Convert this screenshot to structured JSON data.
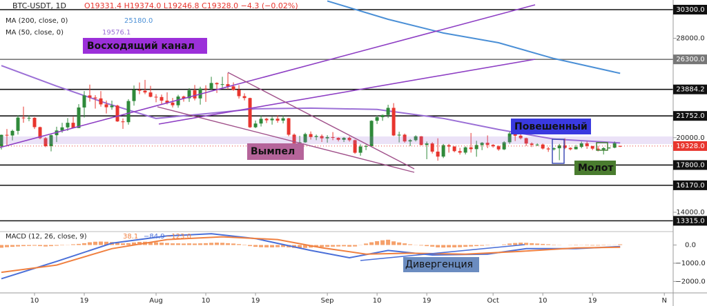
{
  "chart_data": [
    {
      "type": "candlestick",
      "title": "BTC-USDT, 1D",
      "header": "O19331.4 H19374.0 L19246.8 C19328.0 −4.3 (−0.02%)",
      "up_color": "#2f8a3a",
      "down_color": "#e8352e",
      "xlim": [
        -0.25,
        121.6
      ],
      "xticks": [
        {
          "value": 6,
          "label": "10"
        },
        {
          "value": 15,
          "label": "19"
        },
        {
          "value": 28,
          "label": "Aug"
        },
        {
          "value": 37,
          "label": "10"
        },
        {
          "value": 46,
          "label": "19"
        },
        {
          "value": 59,
          "label": "Sep"
        },
        {
          "value": 68,
          "label": "10"
        },
        {
          "value": 77,
          "label": "19"
        },
        {
          "value": 89,
          "label": "Oct"
        },
        {
          "value": 98,
          "label": "10"
        },
        {
          "value": 107,
          "label": "19"
        },
        {
          "value": 120,
          "label": "N"
        }
      ],
      "ylim": [
        12504,
        31076
      ],
      "yticks": [
        {
          "value": 28000,
          "label": "28000.0"
        },
        {
          "value": 20000,
          "label": "20000.0"
        },
        {
          "value": 14000,
          "label": "14000.0"
        }
      ],
      "levels": [
        {
          "value": 30300,
          "label": "30300.0",
          "color": "#111111"
        },
        {
          "value": 26300,
          "label": "26300.0",
          "color": "#777777"
        },
        {
          "value": 23884.2,
          "label": "23884.2",
          "color": "#111111"
        },
        {
          "value": 21752,
          "label": "21752.0",
          "color": "#111111"
        },
        {
          "value": 17800,
          "label": "17800.0",
          "color": "#111111"
        },
        {
          "value": 16170,
          "label": "16170.0",
          "color": "#111111"
        },
        {
          "value": 13315,
          "label": "13315.0",
          "color": "#111111"
        }
      ],
      "last_price": {
        "value": 19328,
        "label": "19328.0",
        "color": "#e8352e"
      },
      "candles": [
        [
          19300,
          20250,
          19050,
          20230
        ],
        [
          20230,
          20700,
          19300,
          20180
        ],
        [
          20180,
          20650,
          19780,
          20550
        ],
        [
          20550,
          21800,
          20250,
          21620
        ],
        [
          21620,
          22500,
          21200,
          21590
        ],
        [
          21590,
          21800,
          21330,
          21600
        ],
        [
          21600,
          21650,
          20700,
          20850
        ],
        [
          20850,
          20890,
          19880,
          19960
        ],
        [
          19960,
          20050,
          19240,
          19320
        ],
        [
          19320,
          20250,
          18900,
          20200
        ],
        [
          20200,
          20880,
          19650,
          20580
        ],
        [
          20580,
          21200,
          20400,
          20830
        ],
        [
          20830,
          21580,
          20550,
          21200
        ],
        [
          21200,
          21680,
          20760,
          20780
        ],
        [
          20780,
          22700,
          20770,
          22430
        ],
        [
          22430,
          23750,
          21620,
          23400
        ],
        [
          23400,
          24270,
          22900,
          23230
        ],
        [
          23230,
          23420,
          22340,
          23160
        ],
        [
          23160,
          23750,
          22500,
          22680
        ],
        [
          22680,
          22990,
          21950,
          22450
        ],
        [
          22450,
          22980,
          22250,
          22580
        ],
        [
          22580,
          22650,
          21270,
          21310
        ],
        [
          21310,
          21550,
          20710,
          21250
        ],
        [
          21250,
          23100,
          21050,
          22950
        ],
        [
          22950,
          24200,
          22580,
          23850
        ],
        [
          23850,
          24440,
          23500,
          23780
        ],
        [
          23780,
          24650,
          23500,
          23640
        ],
        [
          23640,
          24170,
          23250,
          23290
        ],
        [
          23290,
          23500,
          22850,
          23270
        ],
        [
          23270,
          23470,
          22650,
          22980
        ],
        [
          22980,
          23650,
          22680,
          22820
        ],
        [
          22820,
          23200,
          22430,
          22610
        ],
        [
          22610,
          23450,
          22410,
          23310
        ],
        [
          23310,
          23380,
          22900,
          23170
        ],
        [
          23170,
          23980,
          22880,
          23810
        ],
        [
          23810,
          24240,
          23000,
          23160
        ],
        [
          23160,
          24100,
          22660,
          23950
        ],
        [
          23950,
          24220,
          22880,
          23940
        ],
        [
          23940,
          24900,
          23870,
          24400
        ],
        [
          24400,
          24450,
          23600,
          24300
        ],
        [
          24300,
          24900,
          24020,
          24305
        ],
        [
          24305,
          25200,
          23900,
          24130
        ],
        [
          24130,
          24450,
          23780,
          23850
        ],
        [
          23850,
          24230,
          23150,
          23340
        ],
        [
          23340,
          23570,
          23000,
          23190
        ],
        [
          23190,
          23220,
          20780,
          20840
        ],
        [
          20840,
          21380,
          20770,
          21140
        ],
        [
          21140,
          21800,
          20900,
          21520
        ],
        [
          21520,
          21600,
          21180,
          21400
        ],
        [
          21400,
          21680,
          21050,
          21530
        ],
        [
          21530,
          21810,
          21200,
          21370
        ],
        [
          21370,
          21800,
          21150,
          21560
        ],
        [
          21560,
          21600,
          20120,
          20240
        ],
        [
          20240,
          20340,
          19520,
          19550
        ],
        [
          19550,
          20150,
          19470,
          19630
        ],
        [
          19630,
          20400,
          19580,
          20290
        ],
        [
          20290,
          20500,
          19850,
          20050
        ],
        [
          20050,
          20250,
          19800,
          20130
        ],
        [
          20130,
          20260,
          19650,
          19950
        ],
        [
          19950,
          20200,
          19600,
          20050
        ],
        [
          20050,
          20450,
          19800,
          19990
        ],
        [
          19990,
          20030,
          19700,
          19830
        ],
        [
          19830,
          20050,
          19650,
          19990
        ],
        [
          19990,
          20100,
          19680,
          19800
        ],
        [
          19800,
          19850,
          18700,
          18790
        ],
        [
          18790,
          19460,
          18550,
          19290
        ],
        [
          19290,
          19440,
          19000,
          19320
        ],
        [
          19320,
          21400,
          19300,
          21360
        ],
        [
          21360,
          21790,
          21100,
          21650
        ],
        [
          21650,
          21860,
          21360,
          21830
        ],
        [
          21830,
          22650,
          21580,
          22400
        ],
        [
          22400,
          22780,
          20130,
          20180
        ],
        [
          20180,
          20480,
          19620,
          20240
        ],
        [
          20240,
          20330,
          19600,
          19700
        ],
        [
          19700,
          19890,
          19320,
          19800
        ],
        [
          19800,
          20190,
          19700,
          20110
        ],
        [
          20110,
          20130,
          19370,
          19420
        ],
        [
          19420,
          19690,
          18270,
          19540
        ],
        [
          19540,
          19640,
          18730,
          18880
        ],
        [
          18880,
          19950,
          18150,
          18480
        ],
        [
          18480,
          19500,
          18360,
          19400
        ],
        [
          19400,
          19500,
          18800,
          19290
        ],
        [
          19290,
          19310,
          18830,
          18920
        ],
        [
          18920,
          19180,
          18640,
          18800
        ],
        [
          18800,
          19300,
          18650,
          19220
        ],
        [
          19220,
          20380,
          18800,
          19080
        ],
        [
          19080,
          19750,
          18470,
          19410
        ],
        [
          19410,
          19650,
          19000,
          19590
        ],
        [
          19590,
          20180,
          19160,
          19420
        ],
        [
          19420,
          19480,
          19200,
          19310
        ],
        [
          19310,
          19390,
          18950,
          19060
        ],
        [
          19060,
          19720,
          19000,
          19630
        ],
        [
          19630,
          20470,
          19500,
          20340
        ],
        [
          20340,
          20370,
          19730,
          20160
        ],
        [
          20160,
          20450,
          19860,
          19960
        ],
        [
          19960,
          20000,
          19330,
          19530
        ],
        [
          19530,
          19620,
          19250,
          19420
        ],
        [
          19420,
          19550,
          19320,
          19450
        ],
        [
          19450,
          19530,
          19050,
          19130
        ],
        [
          19130,
          19260,
          18860,
          19060
        ],
        [
          19060,
          19220,
          18970,
          19150
        ],
        [
          19150,
          19500,
          18190,
          19380
        ],
        [
          19380,
          19950,
          19080,
          19180
        ],
        [
          19180,
          19230,
          18980,
          19070
        ],
        [
          19070,
          19420,
          19050,
          19260
        ],
        [
          19260,
          19690,
          19150,
          19550
        ],
        [
          19550,
          19700,
          19100,
          19330
        ],
        [
          19330,
          19350,
          19000,
          19120
        ],
        [
          19120,
          19350,
          18900,
          19040
        ],
        [
          19040,
          19240,
          18650,
          19160
        ],
        [
          19160,
          19240,
          19110,
          19200
        ],
        [
          19200,
          19700,
          19150,
          19570
        ],
        [
          19331.4,
          19374,
          19246.8,
          19328
        ]
      ],
      "series": [
        {
          "name": "MA (200, close, 0)",
          "value_label": "25180.0",
          "color": "#4a8fd6",
          "x": [
            59,
            70,
            80,
            90,
            100,
            112
          ],
          "values": [
            31000,
            29525,
            28420,
            27640,
            26370,
            25180
          ]
        },
        {
          "name": "MA (50, close, 0)",
          "value_label": "19576.1",
          "color": "#9b6fd6",
          "x": [
            0,
            10,
            19,
            28,
            37,
            46,
            56,
            68,
            80,
            90,
            100,
            112
          ],
          "values": [
            25800,
            24150,
            22770,
            21550,
            21930,
            22320,
            22380,
            22270,
            21550,
            20660,
            19890,
            19576.1
          ]
        }
      ],
      "annotations": [
        "Восходящий канал",
        "Вымпел",
        "Повешенный",
        "Молот"
      ]
    },
    {
      "type": "macd",
      "title": "MACD (12, 26, close, 9)",
      "ylim": [
        -2630,
        700
      ],
      "yticks": [
        {
          "value": 0,
          "label": "0.0"
        },
        {
          "value": -1000,
          "label": "−1000.0"
        },
        {
          "value": -2000,
          "label": "−2000.0"
        }
      ],
      "histogram": {
        "value_label": "38.1",
        "color": "#f5a06a",
        "values": [
          -150,
          -120,
          -100,
          -80,
          -60,
          -50,
          -40,
          -60,
          -80,
          -60,
          -40,
          -20,
          10,
          40,
          60,
          100,
          150,
          180,
          190,
          180,
          160,
          120,
          90,
          100,
          140,
          170,
          180,
          170,
          150,
          130,
          110,
          90,
          90,
          80,
          90,
          80,
          90,
          100,
          120,
          130,
          120,
          100,
          80,
          50,
          20,
          -60,
          -100,
          -120,
          -130,
          -130,
          -120,
          -110,
          -130,
          -160,
          -170,
          -160,
          -140,
          -120,
          -110,
          -100,
          -90,
          -80,
          -70,
          -90,
          -80,
          10,
          80,
          150,
          210,
          260,
          290,
          200,
          140,
          90,
          40,
          10,
          -30,
          -60,
          -90,
          -130,
          -140,
          -130,
          -130,
          -120,
          -100,
          -80,
          -60,
          -40,
          -20,
          -10,
          0,
          30,
          80,
          110,
          130,
          120,
          100,
          80,
          60,
          40,
          20,
          10,
          0,
          -10,
          -20,
          -10,
          -20,
          -30,
          -30,
          -20,
          -10,
          10,
          38.1
        ]
      },
      "series": [
        {
          "value_label": "−84.9",
          "color": "#4a6fd8",
          "x": [
            0,
            10,
            20,
            30,
            38,
            46,
            56,
            63,
            70,
            78,
            88,
            95,
            104,
            112
          ],
          "values": [
            -1850,
            -900,
            100,
            500,
            620,
            350,
            -300,
            -700,
            -300,
            -550,
            -500,
            -200,
            -200,
            -84.9
          ]
        },
        {
          "value_label": "−123.0",
          "color": "#f08040",
          "x": [
            0,
            10,
            20,
            30,
            40,
            50,
            58,
            66,
            74,
            84,
            94,
            104,
            112
          ],
          "values": [
            -1500,
            -1100,
            -200,
            300,
            450,
            300,
            -150,
            -500,
            -450,
            -500,
            -350,
            -160,
            -123
          ]
        }
      ],
      "annotations": [
        "Дивергенция"
      ]
    }
  ]
}
